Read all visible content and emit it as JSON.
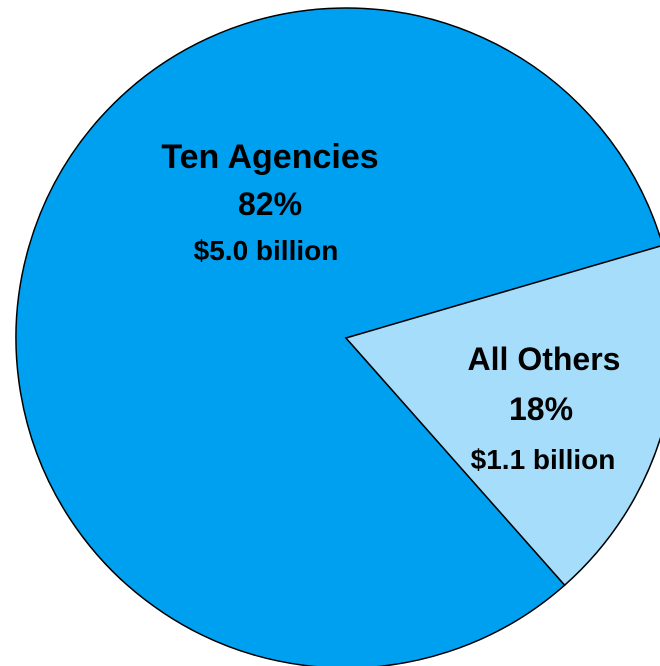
{
  "chart_data": {
    "type": "pie",
    "title": "",
    "slices": [
      {
        "name": "Ten Agencies",
        "percent": "82%",
        "amount": "$5.0 billion",
        "value": 82,
        "color": "#00a0f0"
      },
      {
        "name": "All Others",
        "percent": "18%",
        "amount": "$1.1 billion",
        "value": 18,
        "color": "#a6ddfb"
      }
    ],
    "edge_color": "#000000",
    "legend": "none"
  }
}
